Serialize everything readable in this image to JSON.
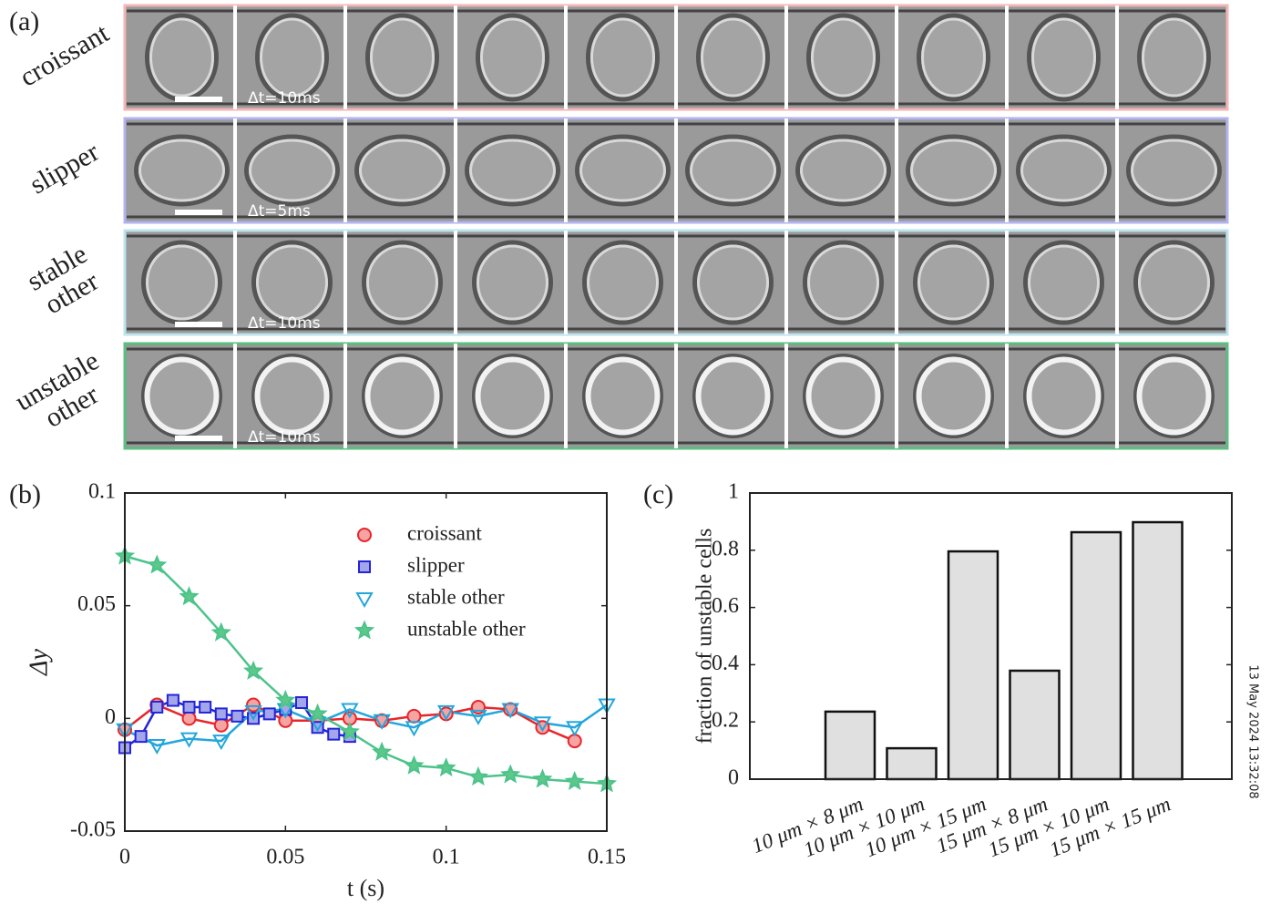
{
  "panel_a": {
    "label": "(a)",
    "rows": [
      {
        "label_lines": [
          "croissant"
        ],
        "interval": "Δt=10ms",
        "border": "#f2b6b6"
      },
      {
        "label_lines": [
          "slipper"
        ],
        "interval": "Δt=5ms",
        "border": "#b3b3ee"
      },
      {
        "label_lines": [
          "stable",
          "other"
        ],
        "interval": "Δt=10ms",
        "border": "#bde3ec"
      },
      {
        "label_lines": [
          "unstable",
          "other"
        ],
        "interval": "Δt=10ms",
        "border": "#5cbf80"
      }
    ]
  },
  "timestamp": "13 May 2024 13:32:08",
  "chart_data": [
    {
      "type": "line",
      "panel_label": "(b)",
      "x_label": "t (s)",
      "y_label": "Δy",
      "xlim": [
        0,
        0.15
      ],
      "xticks": [
        0,
        0.05,
        0.1,
        0.15
      ],
      "ylim": [
        -0.05,
        0.1
      ],
      "yticks": [
        -0.05,
        0,
        0.05,
        0.1
      ],
      "legend": "upper right",
      "series": [
        {
          "name": "croissant",
          "color": "#e8262a",
          "fill": "#f5a3a3",
          "marker": "circle",
          "x": [
            0,
            0.01,
            0.02,
            0.03,
            0.04,
            0.05,
            0.06,
            0.07,
            0.08,
            0.09,
            0.1,
            0.11,
            0.12,
            0.13,
            0.14
          ],
          "values": [
            -0.005,
            0.006,
            0,
            -0.003,
            0.006,
            -0.001,
            -0.001,
            0,
            -0.001,
            0.001,
            0.002,
            0.005,
            0.004,
            -0.004,
            -0.01
          ]
        },
        {
          "name": "slipper",
          "color": "#2424d8",
          "fill": "#a3a6ea",
          "marker": "square",
          "x": [
            0,
            0.005,
            0.01,
            0.015,
            0.02,
            0.025,
            0.03,
            0.035,
            0.04,
            0.045,
            0.05,
            0.055,
            0.06,
            0.065,
            0.07
          ],
          "values": [
            -0.013,
            -0.008,
            0.005,
            0.008,
            0.005,
            0.005,
            0.002,
            0.001,
            0,
            0.002,
            0.004,
            0.007,
            -0.004,
            -0.007,
            -0.008
          ]
        },
        {
          "name": "stable other",
          "color": "#22a6dc",
          "fill": "none",
          "marker": "triangle",
          "x": [
            0,
            0.01,
            0.02,
            0.03,
            0.04,
            0.05,
            0.06,
            0.07,
            0.08,
            0.09,
            0.1,
            0.11,
            0.12,
            0.13,
            0.14,
            0.15
          ],
          "values": [
            -0.005,
            -0.012,
            -0.009,
            -0.01,
            0.003,
            0.004,
            -0.002,
            0.004,
            -0.001,
            -0.004,
            0.003,
            0.001,
            0.004,
            -0.002,
            -0.004,
            0.006
          ]
        },
        {
          "name": "unstable other",
          "color": "#4cc38a",
          "fill": "#5cc88a",
          "marker": "star",
          "x": [
            0,
            0.01,
            0.02,
            0.03,
            0.04,
            0.05,
            0.06,
            0.07,
            0.08,
            0.09,
            0.1,
            0.11,
            0.12,
            0.13,
            0.14,
            0.15
          ],
          "values": [
            0.072,
            0.068,
            0.054,
            0.038,
            0.021,
            0.008,
            0.002,
            -0.006,
            -0.015,
            -0.021,
            -0.022,
            -0.026,
            -0.025,
            -0.027,
            -0.028,
            -0.029
          ]
        }
      ]
    },
    {
      "type": "bar",
      "panel_label": "(c)",
      "y_label": "fraction of unstable cells",
      "categories": [
        "10 μm × 8 μm",
        "10 μm × 10 μm",
        "10 μm × 15 μm",
        "15 μm × 8 μm",
        "15 μm × 10 μm",
        "15 μm × 15 μm"
      ],
      "values": [
        0.236,
        0.108,
        0.796,
        0.379,
        0.863,
        0.898
      ],
      "color": "#e0e0e0",
      "ylim": [
        0,
        1
      ],
      "yticks": [
        0,
        0.2,
        0.4,
        0.6,
        0.8,
        1
      ]
    }
  ]
}
